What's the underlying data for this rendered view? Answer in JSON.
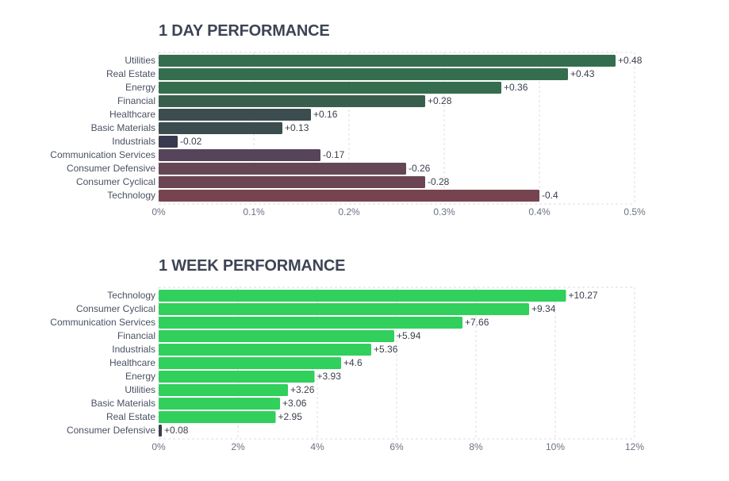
{
  "chart_data": [
    {
      "type": "bar",
      "orientation": "horizontal",
      "title": "1 DAY PERFORMANCE",
      "categories": [
        "Utilities",
        "Real Estate",
        "Energy",
        "Financial",
        "Healthcare",
        "Basic Materials",
        "Industrials",
        "Communication Services",
        "Consumer Defensive",
        "Consumer Cyclical",
        "Technology"
      ],
      "values": [
        0.48,
        0.43,
        0.36,
        0.28,
        0.16,
        0.13,
        -0.02,
        -0.17,
        -0.26,
        -0.28,
        -0.4
      ],
      "value_labels": [
        "+0.48",
        "+0.43",
        "+0.36",
        "+0.28",
        "+0.16",
        "+0.13",
        "-0.02",
        "-0.17",
        "-0.26",
        "-0.28",
        "-0.4"
      ],
      "colors": [
        "#356e4e",
        "#356e4e",
        "#356e4e",
        "#385f4d",
        "#3b4d4e",
        "#3b4d4e",
        "#393a4f",
        "#56445a",
        "#654654",
        "#6b4553",
        "#75444f"
      ],
      "bar_magnitude": "absolute",
      "xlim": [
        0,
        0.5
      ],
      "xticks": [
        0,
        0.1,
        0.2,
        0.3,
        0.4,
        0.5
      ],
      "xtick_labels": [
        "0%",
        "0.1%",
        "0.2%",
        "0.3%",
        "0.4%",
        "0.5%"
      ],
      "grid": true
    },
    {
      "type": "bar",
      "orientation": "horizontal",
      "title": "1 WEEK PERFORMANCE",
      "categories": [
        "Technology",
        "Consumer Cyclical",
        "Communication Services",
        "Financial",
        "Industrials",
        "Healthcare",
        "Energy",
        "Utilities",
        "Basic Materials",
        "Real Estate",
        "Consumer Defensive"
      ],
      "values": [
        10.27,
        9.34,
        7.66,
        5.94,
        5.36,
        4.6,
        3.93,
        3.26,
        3.06,
        2.95,
        0.08
      ],
      "value_labels": [
        "+10.27",
        "+9.34",
        "+7.66",
        "+5.94",
        "+5.36",
        "+4.6",
        "+3.93",
        "+3.26",
        "+3.06",
        "+2.95",
        "+0.08"
      ],
      "colors": [
        "#31cf5c",
        "#31cf5c",
        "#31cf5c",
        "#31cf5c",
        "#31cf5c",
        "#31cf5c",
        "#31cf5c",
        "#31cf5c",
        "#31cf5c",
        "#31cf5c",
        "#3a3f4b"
      ],
      "bar_magnitude": "absolute",
      "xlim": [
        0,
        12
      ],
      "xticks": [
        0,
        2,
        4,
        6,
        8,
        10,
        12
      ],
      "xtick_labels": [
        "0%",
        "2%",
        "4%",
        "6%",
        "8%",
        "10%",
        "12%"
      ],
      "grid": true
    }
  ]
}
